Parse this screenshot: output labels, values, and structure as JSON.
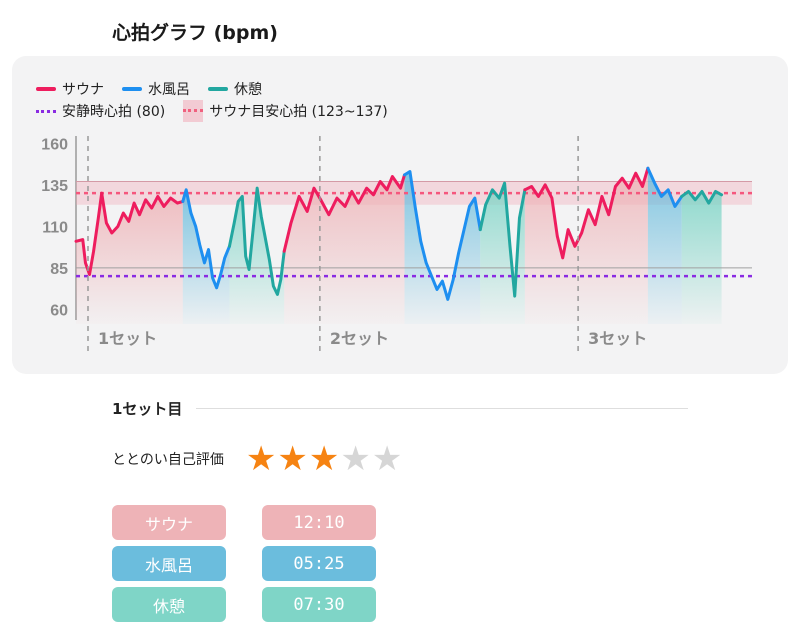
{
  "page_title": "心拍グラフ (bpm)",
  "colors": {
    "sauna": "#ee1d5e",
    "cold_bath": "#1e8ff0",
    "rest": "#22a7a0",
    "resting_line": "#8a2be2",
    "target_line": "#f5577d",
    "sauna_fill": "#eeb3b7",
    "cold_fill": "#6bbddd",
    "rest_fill": "#7fd5c7",
    "star_on": "#f68312",
    "star_off": "#d6d6d6"
  },
  "legend": {
    "sauna": "サウナ",
    "cold_bath": "水風呂",
    "rest": "休憩",
    "resting": "安静時心拍 (80)",
    "target": "サウナ目安心拍 (123~137)"
  },
  "chart_data": {
    "type": "line",
    "y_ticks": [
      160,
      135,
      110,
      85,
      60
    ],
    "ylim": [
      56,
      162
    ],
    "xlim": [
      0,
      1
    ],
    "resting_hr": 80,
    "target_band": [
      123,
      137
    ],
    "target_line": 130,
    "set_labels": [
      "1セット",
      "2セット",
      "3セット"
    ],
    "set_starts": [
      0.0,
      0.343,
      0.725
    ],
    "series": [
      {
        "name": "サウナ",
        "phase": "sauna",
        "points": [
          [
            0.0,
            101
          ],
          [
            0.01,
            102
          ],
          [
            0.014,
            88
          ],
          [
            0.02,
            81
          ],
          [
            0.026,
            95
          ],
          [
            0.033,
            115
          ],
          [
            0.038,
            130
          ],
          [
            0.045,
            112
          ],
          [
            0.053,
            106
          ],
          [
            0.062,
            110
          ],
          [
            0.07,
            118
          ],
          [
            0.078,
            113
          ],
          [
            0.086,
            124
          ],
          [
            0.094,
            117
          ],
          [
            0.103,
            126
          ],
          [
            0.112,
            121
          ],
          [
            0.121,
            128
          ],
          [
            0.13,
            122
          ],
          [
            0.14,
            127
          ],
          [
            0.15,
            124
          ],
          [
            0.158,
            125
          ]
        ]
      },
      {
        "name": "水風呂",
        "phase": "cold",
        "points": [
          [
            0.158,
            125
          ],
          [
            0.163,
            132
          ],
          [
            0.17,
            118
          ],
          [
            0.177,
            110
          ],
          [
            0.183,
            99
          ],
          [
            0.19,
            88
          ],
          [
            0.196,
            96
          ],
          [
            0.202,
            79
          ],
          [
            0.208,
            73
          ],
          [
            0.214,
            81
          ],
          [
            0.22,
            91
          ],
          [
            0.227,
            98
          ]
        ]
      },
      {
        "name": "休憩",
        "phase": "rest",
        "points": [
          [
            0.227,
            98
          ],
          [
            0.234,
            112
          ],
          [
            0.24,
            125
          ],
          [
            0.246,
            128
          ],
          [
            0.251,
            92
          ],
          [
            0.256,
            84
          ],
          [
            0.262,
            108
          ],
          [
            0.268,
            133
          ],
          [
            0.274,
            116
          ],
          [
            0.28,
            103
          ],
          [
            0.286,
            90
          ],
          [
            0.292,
            74
          ],
          [
            0.298,
            69
          ],
          [
            0.303,
            78
          ],
          [
            0.308,
            95
          ]
        ]
      },
      {
        "name": "サウナ",
        "phase": "sauna",
        "points": [
          [
            0.308,
            95
          ],
          [
            0.318,
            112
          ],
          [
            0.33,
            128
          ],
          [
            0.342,
            119
          ],
          [
            0.352,
            133
          ],
          [
            0.362,
            126
          ],
          [
            0.374,
            117
          ],
          [
            0.386,
            127
          ],
          [
            0.398,
            122
          ],
          [
            0.408,
            131
          ],
          [
            0.418,
            124
          ],
          [
            0.43,
            133
          ],
          [
            0.44,
            129
          ],
          [
            0.45,
            137
          ],
          [
            0.46,
            132
          ],
          [
            0.468,
            140
          ],
          [
            0.48,
            133
          ],
          [
            0.486,
            141
          ]
        ]
      },
      {
        "name": "水風呂",
        "phase": "cold",
        "points": [
          [
            0.486,
            141
          ],
          [
            0.494,
            143
          ],
          [
            0.502,
            121
          ],
          [
            0.51,
            101
          ],
          [
            0.518,
            88
          ],
          [
            0.526,
            80
          ],
          [
            0.534,
            72
          ],
          [
            0.542,
            77
          ],
          [
            0.55,
            66
          ],
          [
            0.558,
            78
          ],
          [
            0.566,
            94
          ],
          [
            0.574,
            108
          ],
          [
            0.582,
            122
          ],
          [
            0.59,
            127
          ],
          [
            0.598,
            108
          ]
        ]
      },
      {
        "name": "休憩",
        "phase": "rest",
        "points": [
          [
            0.598,
            108
          ],
          [
            0.606,
            123
          ],
          [
            0.616,
            132
          ],
          [
            0.626,
            127
          ],
          [
            0.634,
            136
          ],
          [
            0.642,
            98
          ],
          [
            0.649,
            68
          ],
          [
            0.656,
            115
          ],
          [
            0.664,
            132
          ]
        ]
      },
      {
        "name": "サウナ",
        "phase": "sauna",
        "points": [
          [
            0.664,
            132
          ],
          [
            0.674,
            134
          ],
          [
            0.684,
            128
          ],
          [
            0.694,
            135
          ],
          [
            0.704,
            127
          ],
          [
            0.712,
            104
          ],
          [
            0.72,
            91
          ],
          [
            0.728,
            108
          ],
          [
            0.738,
            98
          ],
          [
            0.748,
            106
          ],
          [
            0.758,
            120
          ],
          [
            0.768,
            111
          ],
          [
            0.778,
            128
          ],
          [
            0.788,
            117
          ],
          [
            0.798,
            134
          ],
          [
            0.808,
            139
          ],
          [
            0.818,
            133
          ],
          [
            0.828,
            142
          ],
          [
            0.838,
            134
          ],
          [
            0.846,
            145
          ]
        ]
      },
      {
        "name": "水風呂",
        "phase": "cold",
        "points": [
          [
            0.846,
            145
          ],
          [
            0.856,
            136
          ],
          [
            0.866,
            128
          ],
          [
            0.876,
            132
          ],
          [
            0.886,
            122
          ],
          [
            0.896,
            128
          ]
        ]
      },
      {
        "name": "休憩",
        "phase": "rest",
        "points": [
          [
            0.896,
            128
          ],
          [
            0.906,
            131
          ],
          [
            0.916,
            126
          ],
          [
            0.926,
            131
          ],
          [
            0.936,
            124
          ],
          [
            0.946,
            131
          ],
          [
            0.955,
            129
          ]
        ]
      }
    ]
  },
  "section": {
    "title": "1セット目",
    "rating_label": "ととのい自己評価",
    "rating": 3,
    "rating_max": 5,
    "phases": [
      {
        "label": "サウナ",
        "time": "12:10"
      },
      {
        "label": "水風呂",
        "time": "05:25"
      },
      {
        "label": "休憩",
        "time": "07:30"
      }
    ]
  }
}
